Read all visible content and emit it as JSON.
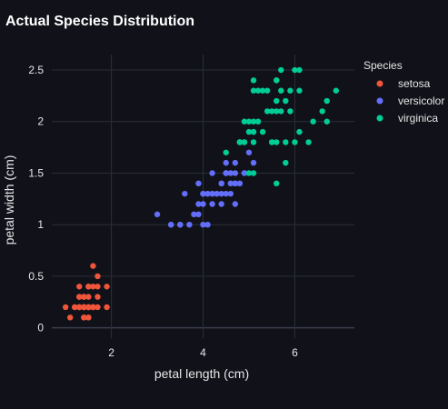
{
  "chart_data": {
    "type": "scatter",
    "title": "Actual Species Distribution",
    "xlabel": "petal length (cm)",
    "ylabel": "petal width (cm)",
    "xlim": [
      0.7,
      7.3
    ],
    "ylim": [
      -0.1,
      2.65
    ],
    "xticks": [
      2,
      4,
      6
    ],
    "yticks": [
      0,
      0.5,
      1,
      1.5,
      2,
      2.5
    ],
    "ytick_labels": [
      "0",
      "0.5",
      "1",
      "1.5",
      "2",
      "2.5"
    ],
    "xtick_labels": [
      "2",
      "4",
      "6"
    ],
    "grid": true,
    "legend": {
      "title": "Species",
      "placement": "top-right"
    },
    "series": [
      {
        "name": "setosa",
        "color": "#ef553b",
        "points": [
          [
            1.4,
            0.2
          ],
          [
            1.4,
            0.2
          ],
          [
            1.3,
            0.2
          ],
          [
            1.5,
            0.2
          ],
          [
            1.4,
            0.2
          ],
          [
            1.7,
            0.4
          ],
          [
            1.4,
            0.3
          ],
          [
            1.5,
            0.2
          ],
          [
            1.4,
            0.2
          ],
          [
            1.5,
            0.1
          ],
          [
            1.5,
            0.2
          ],
          [
            1.6,
            0.2
          ],
          [
            1.4,
            0.1
          ],
          [
            1.1,
            0.1
          ],
          [
            1.2,
            0.2
          ],
          [
            1.5,
            0.4
          ],
          [
            1.3,
            0.4
          ],
          [
            1.4,
            0.3
          ],
          [
            1.7,
            0.3
          ],
          [
            1.5,
            0.3
          ],
          [
            1.7,
            0.2
          ],
          [
            1.5,
            0.4
          ],
          [
            1.0,
            0.2
          ],
          [
            1.7,
            0.5
          ],
          [
            1.9,
            0.2
          ],
          [
            1.6,
            0.2
          ],
          [
            1.6,
            0.4
          ],
          [
            1.5,
            0.2
          ],
          [
            1.4,
            0.2
          ],
          [
            1.6,
            0.2
          ],
          [
            1.6,
            0.2
          ],
          [
            1.5,
            0.4
          ],
          [
            1.5,
            0.1
          ],
          [
            1.4,
            0.2
          ],
          [
            1.5,
            0.2
          ],
          [
            1.2,
            0.2
          ],
          [
            1.3,
            0.2
          ],
          [
            1.4,
            0.1
          ],
          [
            1.3,
            0.2
          ],
          [
            1.5,
            0.2
          ],
          [
            1.3,
            0.3
          ],
          [
            1.3,
            0.3
          ],
          [
            1.3,
            0.2
          ],
          [
            1.6,
            0.6
          ],
          [
            1.9,
            0.4
          ],
          [
            1.4,
            0.3
          ],
          [
            1.6,
            0.2
          ],
          [
            1.4,
            0.2
          ],
          [
            1.5,
            0.2
          ],
          [
            1.4,
            0.2
          ]
        ]
      },
      {
        "name": "versicolor",
        "color": "#636efa",
        "points": [
          [
            4.7,
            1.4
          ],
          [
            4.5,
            1.5
          ],
          [
            4.9,
            1.5
          ],
          [
            4.0,
            1.3
          ],
          [
            4.6,
            1.5
          ],
          [
            4.5,
            1.3
          ],
          [
            4.7,
            1.6
          ],
          [
            3.3,
            1.0
          ],
          [
            4.6,
            1.3
          ],
          [
            3.9,
            1.4
          ],
          [
            3.5,
            1.0
          ],
          [
            4.2,
            1.5
          ],
          [
            4.0,
            1.0
          ],
          [
            4.7,
            1.4
          ],
          [
            3.6,
            1.3
          ],
          [
            4.4,
            1.4
          ],
          [
            4.5,
            1.5
          ],
          [
            4.1,
            1.0
          ],
          [
            4.5,
            1.5
          ],
          [
            3.9,
            1.1
          ],
          [
            4.8,
            1.8
          ],
          [
            4.0,
            1.3
          ],
          [
            4.9,
            1.5
          ],
          [
            4.7,
            1.2
          ],
          [
            4.3,
            1.3
          ],
          [
            4.4,
            1.4
          ],
          [
            4.8,
            1.4
          ],
          [
            5.0,
            1.7
          ],
          [
            4.5,
            1.5
          ],
          [
            3.5,
            1.0
          ],
          [
            3.8,
            1.1
          ],
          [
            3.7,
            1.0
          ],
          [
            3.9,
            1.2
          ],
          [
            5.1,
            1.6
          ],
          [
            4.5,
            1.5
          ],
          [
            4.5,
            1.6
          ],
          [
            4.7,
            1.5
          ],
          [
            4.4,
            1.3
          ],
          [
            4.1,
            1.3
          ],
          [
            4.0,
            1.3
          ],
          [
            4.4,
            1.2
          ],
          [
            4.6,
            1.4
          ],
          [
            4.0,
            1.2
          ],
          [
            3.3,
            1.0
          ],
          [
            4.2,
            1.3
          ],
          [
            4.2,
            1.2
          ],
          [
            4.2,
            1.3
          ],
          [
            4.3,
            1.3
          ],
          [
            3.0,
            1.1
          ],
          [
            4.1,
            1.3
          ]
        ]
      },
      {
        "name": "virginica",
        "color": "#00cc96",
        "points": [
          [
            6.0,
            2.5
          ],
          [
            5.1,
            1.9
          ],
          [
            5.9,
            2.1
          ],
          [
            5.6,
            1.8
          ],
          [
            5.8,
            2.2
          ],
          [
            6.6,
            2.1
          ],
          [
            4.5,
            1.7
          ],
          [
            6.3,
            1.8
          ],
          [
            5.8,
            1.8
          ],
          [
            6.1,
            2.5
          ],
          [
            5.1,
            2.0
          ],
          [
            5.3,
            1.9
          ],
          [
            5.5,
            2.1
          ],
          [
            5.0,
            2.0
          ],
          [
            5.1,
            2.4
          ],
          [
            5.3,
            2.3
          ],
          [
            5.5,
            1.8
          ],
          [
            6.7,
            2.2
          ],
          [
            6.9,
            2.3
          ],
          [
            5.0,
            1.5
          ],
          [
            5.7,
            2.3
          ],
          [
            4.9,
            2.0
          ],
          [
            6.7,
            2.0
          ],
          [
            4.9,
            1.8
          ],
          [
            5.7,
            2.1
          ],
          [
            6.0,
            1.8
          ],
          [
            4.8,
            1.8
          ],
          [
            4.9,
            1.8
          ],
          [
            5.6,
            2.1
          ],
          [
            5.8,
            1.6
          ],
          [
            6.1,
            1.9
          ],
          [
            6.4,
            2.0
          ],
          [
            5.6,
            2.2
          ],
          [
            5.1,
            1.5
          ],
          [
            5.6,
            1.4
          ],
          [
            6.1,
            2.3
          ],
          [
            5.6,
            2.4
          ],
          [
            5.5,
            1.8
          ],
          [
            4.8,
            1.8
          ],
          [
            5.4,
            2.1
          ],
          [
            5.6,
            2.4
          ],
          [
            5.1,
            2.3
          ],
          [
            5.1,
            1.9
          ],
          [
            5.9,
            2.3
          ],
          [
            5.7,
            2.5
          ],
          [
            5.2,
            2.3
          ],
          [
            5.0,
            1.9
          ],
          [
            5.2,
            2.0
          ],
          [
            5.4,
            2.3
          ],
          [
            5.1,
            1.8
          ]
        ]
      }
    ]
  }
}
